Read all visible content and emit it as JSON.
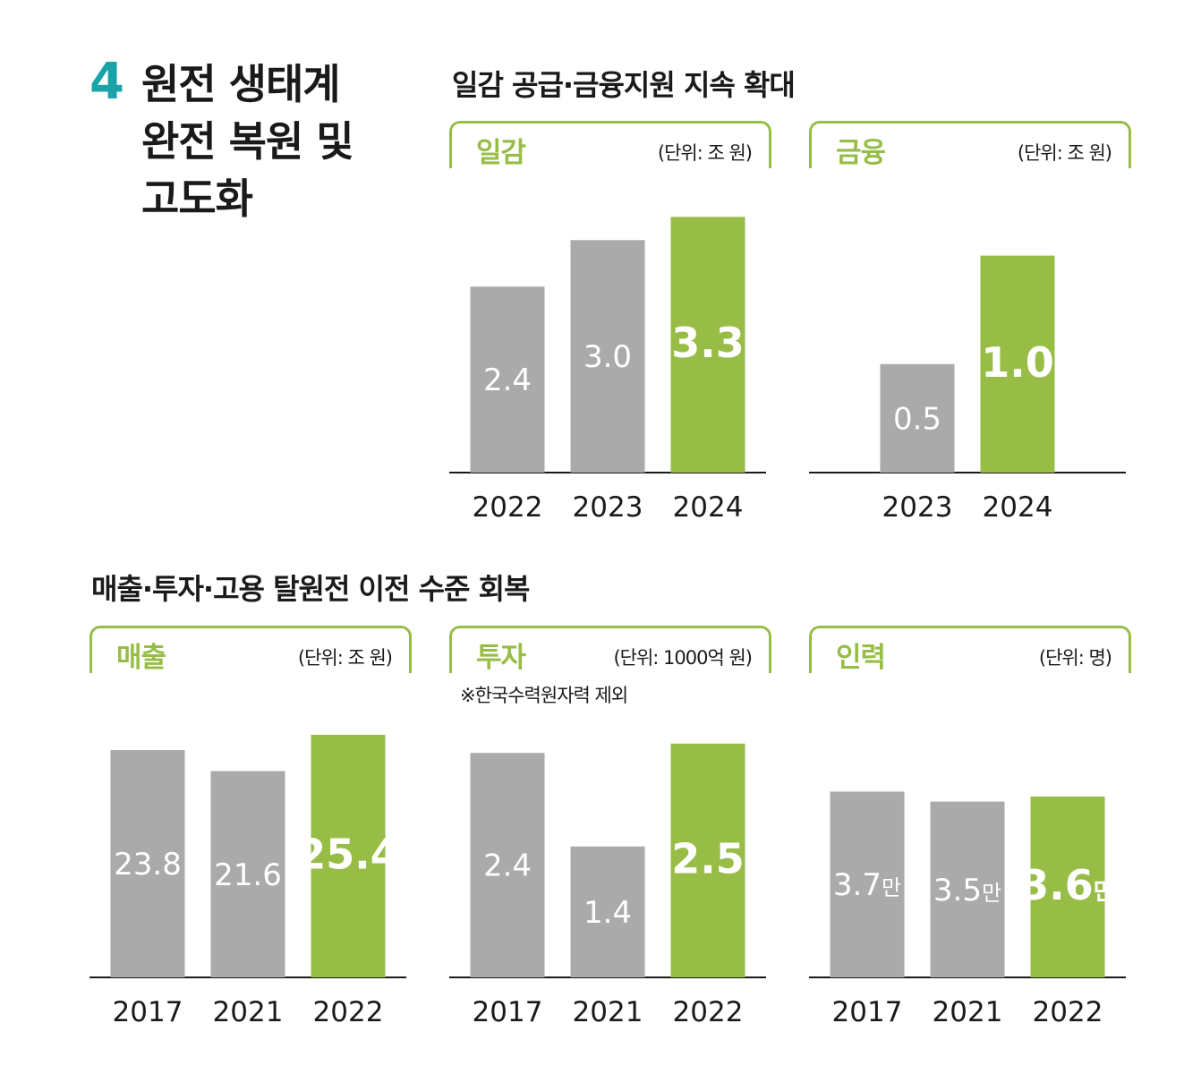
{
  "section": {
    "number": "4",
    "title": "원전 생태계\n완전 복원 및\n고도화"
  },
  "headings": {
    "top": "일감 공급·금융지원 지속 확대",
    "bottom": "매출·투자·고용 탈원전 이전 수준 회복"
  },
  "colors": {
    "accent_green": "#97bd47",
    "bar_gray": "#a9aaa9",
    "section_teal": "#1aa3a8"
  },
  "chart_data": [
    {
      "type": "bar",
      "title": "일감",
      "unit": "(단위: 조 원)",
      "note": "",
      "categories": [
        "2022",
        "2023",
        "2024"
      ],
      "values": [
        2.4,
        3.0,
        3.3
      ],
      "value_labels": [
        "2.4",
        "3.0",
        "3.3"
      ],
      "value_suffix": "",
      "highlight_index": 2,
      "ylim": [
        0,
        3.5
      ]
    },
    {
      "type": "bar",
      "title": "금융",
      "unit": "(단위: 조 원)",
      "note": "",
      "categories": [
        "2023",
        "2024"
      ],
      "values": [
        0.5,
        1.0
      ],
      "value_labels": [
        "0.5",
        "1.0"
      ],
      "value_suffix": "",
      "highlight_index": 1,
      "ylim": [
        0,
        1.25
      ]
    },
    {
      "type": "bar",
      "title": "매출",
      "unit": "(단위: 조 원)",
      "note": "",
      "categories": [
        "2017",
        "2021",
        "2022"
      ],
      "values": [
        23.8,
        21.6,
        25.4
      ],
      "value_labels": [
        "23.8",
        "21.6",
        "25.4"
      ],
      "value_suffix": "",
      "highlight_index": 2,
      "ylim": [
        0,
        28.4
      ]
    },
    {
      "type": "bar",
      "title": "투자",
      "unit": "(단위: 1000억 원)",
      "note": "※한국수력원자력 제외",
      "categories": [
        "2017",
        "2021",
        "2022"
      ],
      "values": [
        2.4,
        1.4,
        2.5
      ],
      "value_labels": [
        "2.4",
        "1.4",
        "2.5"
      ],
      "value_suffix": "",
      "highlight_index": 2,
      "ylim": [
        0,
        2.9
      ]
    },
    {
      "type": "bar",
      "title": "인력",
      "unit": "(단위: 명)",
      "note": "",
      "categories": [
        "2017",
        "2021",
        "2022"
      ],
      "values": [
        3.7,
        3.5,
        3.6
      ],
      "value_labels": [
        "3.7",
        "3.5",
        "3.6"
      ],
      "value_suffix": "만",
      "highlight_index": 2,
      "ylim": [
        0,
        5.4
      ]
    }
  ]
}
